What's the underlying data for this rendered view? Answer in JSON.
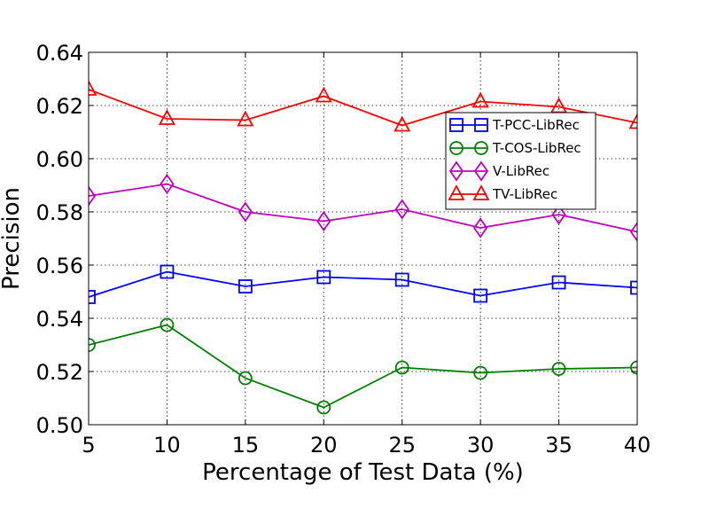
{
  "chart_data": {
    "type": "line",
    "xlabel": "Percentage of Test Data (%)",
    "ylabel": "Precision",
    "x": [
      5,
      10,
      15,
      20,
      25,
      30,
      35,
      40
    ],
    "xlim": [
      5,
      40
    ],
    "ylim": [
      0.5,
      0.64
    ],
    "xticks": [
      "5",
      "10",
      "15",
      "20",
      "25",
      "30",
      "35",
      "40"
    ],
    "yticks": [
      "0.50",
      "0.52",
      "0.54",
      "0.56",
      "0.58",
      "0.60",
      "0.62",
      "0.64"
    ],
    "grid": true,
    "legend_position": "center-right",
    "series": [
      {
        "name": "T-PCC-LibRec",
        "color": "#0000ff",
        "marker": "square",
        "values": [
          0.548,
          0.5575,
          0.552,
          0.5555,
          0.5545,
          0.5485,
          0.5535,
          0.5515
        ]
      },
      {
        "name": "T-COS-LibRec",
        "color": "#008000",
        "marker": "circle",
        "values": [
          0.53,
          0.5375,
          0.5175,
          0.5065,
          0.5215,
          0.5195,
          0.521,
          0.5215
        ]
      },
      {
        "name": "V-LibRec",
        "color": "#bf00bf",
        "marker": "diamond",
        "values": [
          0.586,
          0.5905,
          0.58,
          0.5765,
          0.581,
          0.574,
          0.579,
          0.5725
        ]
      },
      {
        "name": "TV-LibRec",
        "color": "#ff0000",
        "marker": "triangle",
        "values": [
          0.626,
          0.615,
          0.6145,
          0.6235,
          0.6125,
          0.6215,
          0.6195,
          0.6135
        ]
      }
    ]
  }
}
